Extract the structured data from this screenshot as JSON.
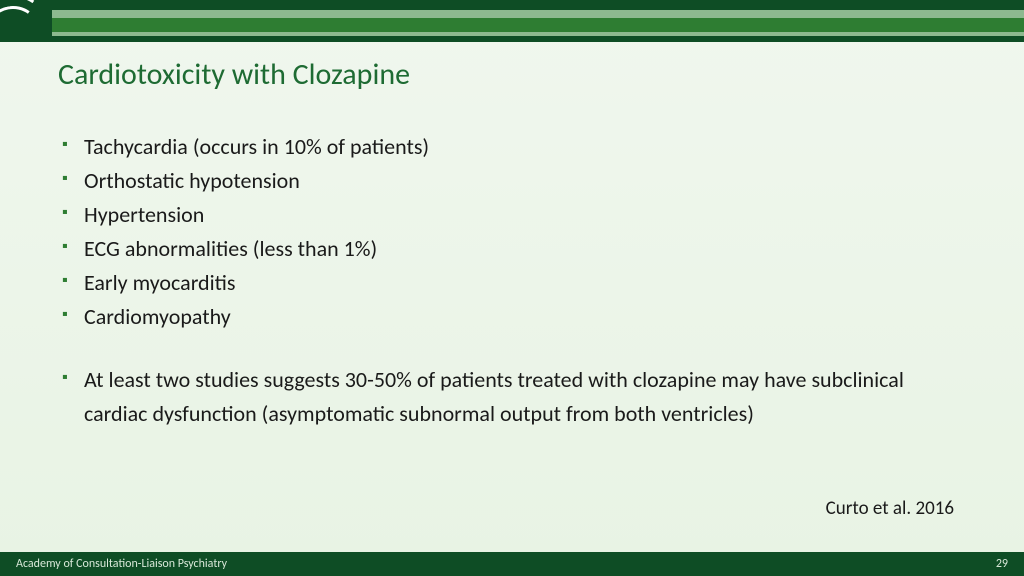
{
  "colors": {
    "background_top": "#f0f7ee",
    "background_bottom": "#e8f3e4",
    "band_dark": "#0e4d25",
    "band_light": "#8db98f",
    "band_mid": "#2e7d32",
    "title_color": "#1e6b33",
    "bullet_color": "#2e7d32",
    "text_color": "#1a1a1a",
    "footer_bg": "#0e4d25",
    "footer_text": "#d8e8d8",
    "arc_color": "#ffffff"
  },
  "typography": {
    "title_fontsize": 30,
    "body_fontsize": 22,
    "citation_fontsize": 19,
    "footer_fontsize": 12,
    "font_family": "Calibri"
  },
  "title": "Cardiotoxicity with Clozapine",
  "bullets_group1": [
    "Tachycardia (occurs in 10% of patients)",
    "Orthostatic hypotension",
    "Hypertension",
    "ECG abnormalities (less than 1%)",
    "Early myocarditis",
    "Cardiomyopathy"
  ],
  "bullets_group2": [
    "At least two studies suggests 30-50% of patients treated with clozapine may have subclinical cardiac dysfunction (asymptomatic subnormal output from both ventricles)"
  ],
  "citation": "Curto et al. 2016",
  "footer": {
    "org": "Academy of Consultation-Liaison Psychiatry",
    "page": "29"
  }
}
